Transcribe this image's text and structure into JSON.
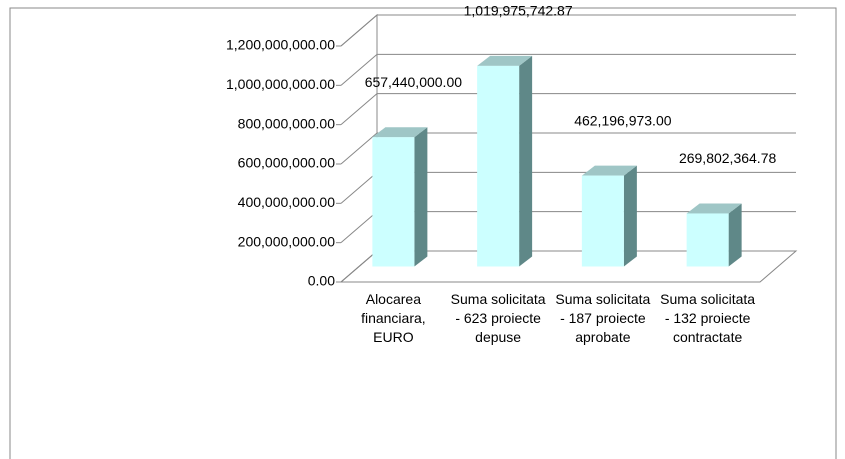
{
  "chart_data": {
    "type": "bar3d",
    "categories": [
      "Alocarea financiara, EURO",
      "Suma solicitata - 623 proiecte depuse",
      "Suma solicitata - 187 proiecte aprobate",
      "Suma solicitata - 132 proiecte contractate"
    ],
    "values": [
      657440000.0,
      1019975742.87,
      462196973.0,
      269802364.78
    ],
    "value_labels": [
      "657,440,000.00",
      "1,019,975,742.87",
      "462,196,973.00",
      "269,802,364.78"
    ],
    "colors": {
      "front": "#ccffff",
      "side": "#5f8888",
      "top": "#9fc6c6"
    },
    "ylim": [
      0,
      1200000000
    ],
    "yticks": [
      {
        "value": 0,
        "label": "0.00"
      },
      {
        "value": 200000000,
        "label": "200,000,000.00"
      },
      {
        "value": 400000000,
        "label": "400,000,000.00"
      },
      {
        "value": 600000000,
        "label": "600,000,000.00"
      },
      {
        "value": 800000000,
        "label": "800,000,000.00"
      },
      {
        "value": 1000000000,
        "label": "1,000,000,000.00"
      },
      {
        "value": 1200000000,
        "label": "1,200,000,000.00"
      }
    ],
    "grid": true
  }
}
